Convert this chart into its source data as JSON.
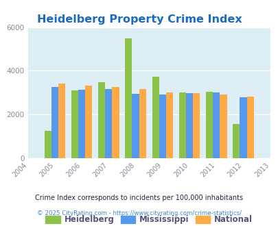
{
  "title": "Heidelberg Property Crime Index",
  "years": [
    2004,
    2005,
    2006,
    2007,
    2008,
    2009,
    2010,
    2011,
    2012,
    2013
  ],
  "bar_years": [
    2005,
    2006,
    2007,
    2008,
    2009,
    2010,
    2011,
    2012
  ],
  "heidelberg": [
    1250,
    3100,
    3480,
    5480,
    3730,
    3000,
    3050,
    1580
  ],
  "mississippi": [
    3250,
    3150,
    3180,
    2950,
    2920,
    2970,
    3010,
    2780
  ],
  "national": [
    3420,
    3310,
    3270,
    3170,
    3020,
    2970,
    2900,
    2810
  ],
  "heidelberg_color": "#8bc34a",
  "mississippi_color": "#5599ee",
  "national_color": "#ffaa44",
  "fig_bg_color": "#ffffff",
  "plot_bg": "#ddeef5",
  "ylim": [
    0,
    6000
  ],
  "yticks": [
    0,
    2000,
    4000,
    6000
  ],
  "title_color": "#1a6bbf",
  "title_fontsize": 11.5,
  "legend_labels": [
    "Heidelberg",
    "Mississippi",
    "National"
  ],
  "legend_text_color": "#555577",
  "footnote1": "Crime Index corresponds to incidents per 100,000 inhabitants",
  "footnote1_color": "#222244",
  "footnote2": "© 2025 CityRating.com - https://www.cityrating.com/crime-statistics/",
  "footnote2_color": "#4488cc",
  "bar_width": 0.26
}
